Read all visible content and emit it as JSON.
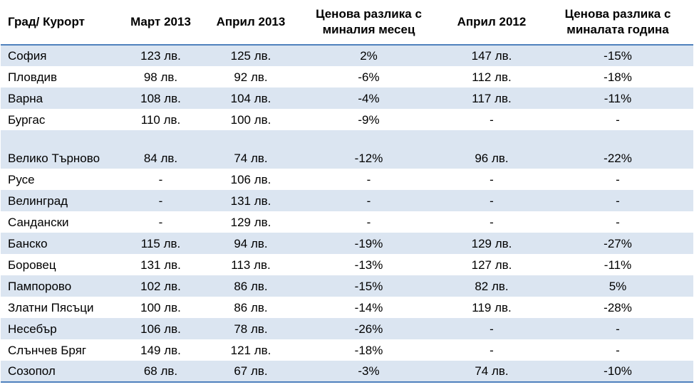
{
  "table": {
    "headers": [
      "Град/ Курорт",
      "Март 2013",
      "Април 2013",
      "Ценова разлика с миналия месец",
      "Април 2012",
      "Ценова разлика с миналата година"
    ],
    "rows": [
      [
        "София",
        "123 лв.",
        "125 лв.",
        "2%",
        "147 лв.",
        "-15%"
      ],
      [
        "Пловдив",
        "98 лв.",
        "92 лв.",
        "-6%",
        "112 лв.",
        "-18%"
      ],
      [
        "Варна",
        "108 лв.",
        "104 лв.",
        "-4%",
        "117 лв.",
        "-11%"
      ],
      [
        "Бургас",
        "110 лв.",
        "100 лв.",
        "-9%",
        "-",
        "-"
      ],
      [
        "Велико Търново",
        "84 лв.",
        "74 лв.",
        "-12%",
        "96 лв.",
        "-22%"
      ],
      [
        "Русе",
        "-",
        "106 лв.",
        "-",
        "-",
        "-"
      ],
      [
        "Велинград",
        "-",
        "131 лв.",
        "-",
        "-",
        "-"
      ],
      [
        "Сандански",
        "-",
        "129 лв.",
        "-",
        "-",
        "-"
      ],
      [
        "Банско",
        "115 лв.",
        "94 лв.",
        "-19%",
        "129 лв.",
        "-27%"
      ],
      [
        "Боровец",
        "131 лв.",
        "113 лв.",
        "-13%",
        "127 лв.",
        "-11%"
      ],
      [
        "Пампорово",
        "102 лв.",
        "86 лв.",
        "-15%",
        "82 лв.",
        "5%"
      ],
      [
        "Златни Пясъци",
        "100 лв.",
        "86 лв.",
        "-14%",
        "119 лв.",
        "-28%"
      ],
      [
        "Несебър",
        "106 лв.",
        "78 лв.",
        "-26%",
        "-",
        "-"
      ],
      [
        "Слънчев Бряг",
        "149 лв.",
        "121 лв.",
        "-18%",
        "-",
        "-"
      ],
      [
        "Созопол",
        "68 лв.",
        "67 лв.",
        "-3%",
        "74 лв.",
        "-10%"
      ]
    ]
  },
  "colors": {
    "band": "#dbe5f1",
    "rule": "#4f81bd"
  }
}
